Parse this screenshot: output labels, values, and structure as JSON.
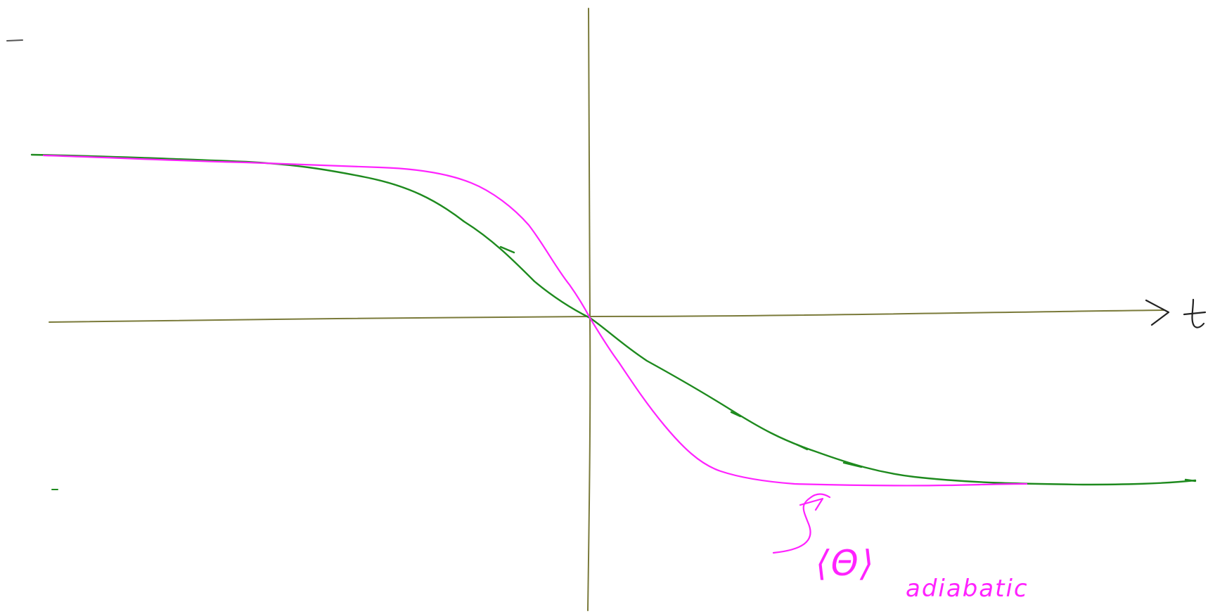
{
  "axes": {
    "x_label": "t"
  },
  "annotation": {
    "main": "⟨Θ⟩",
    "subscript": "adiabatic"
  },
  "colors": {
    "axis": "#7a7a3a",
    "curve_green": "#1e8a1e",
    "curve_magenta": "#ff22ff"
  },
  "curves": [
    {
      "name": "green-curve"
    },
    {
      "name": "magenta-curve"
    }
  ]
}
